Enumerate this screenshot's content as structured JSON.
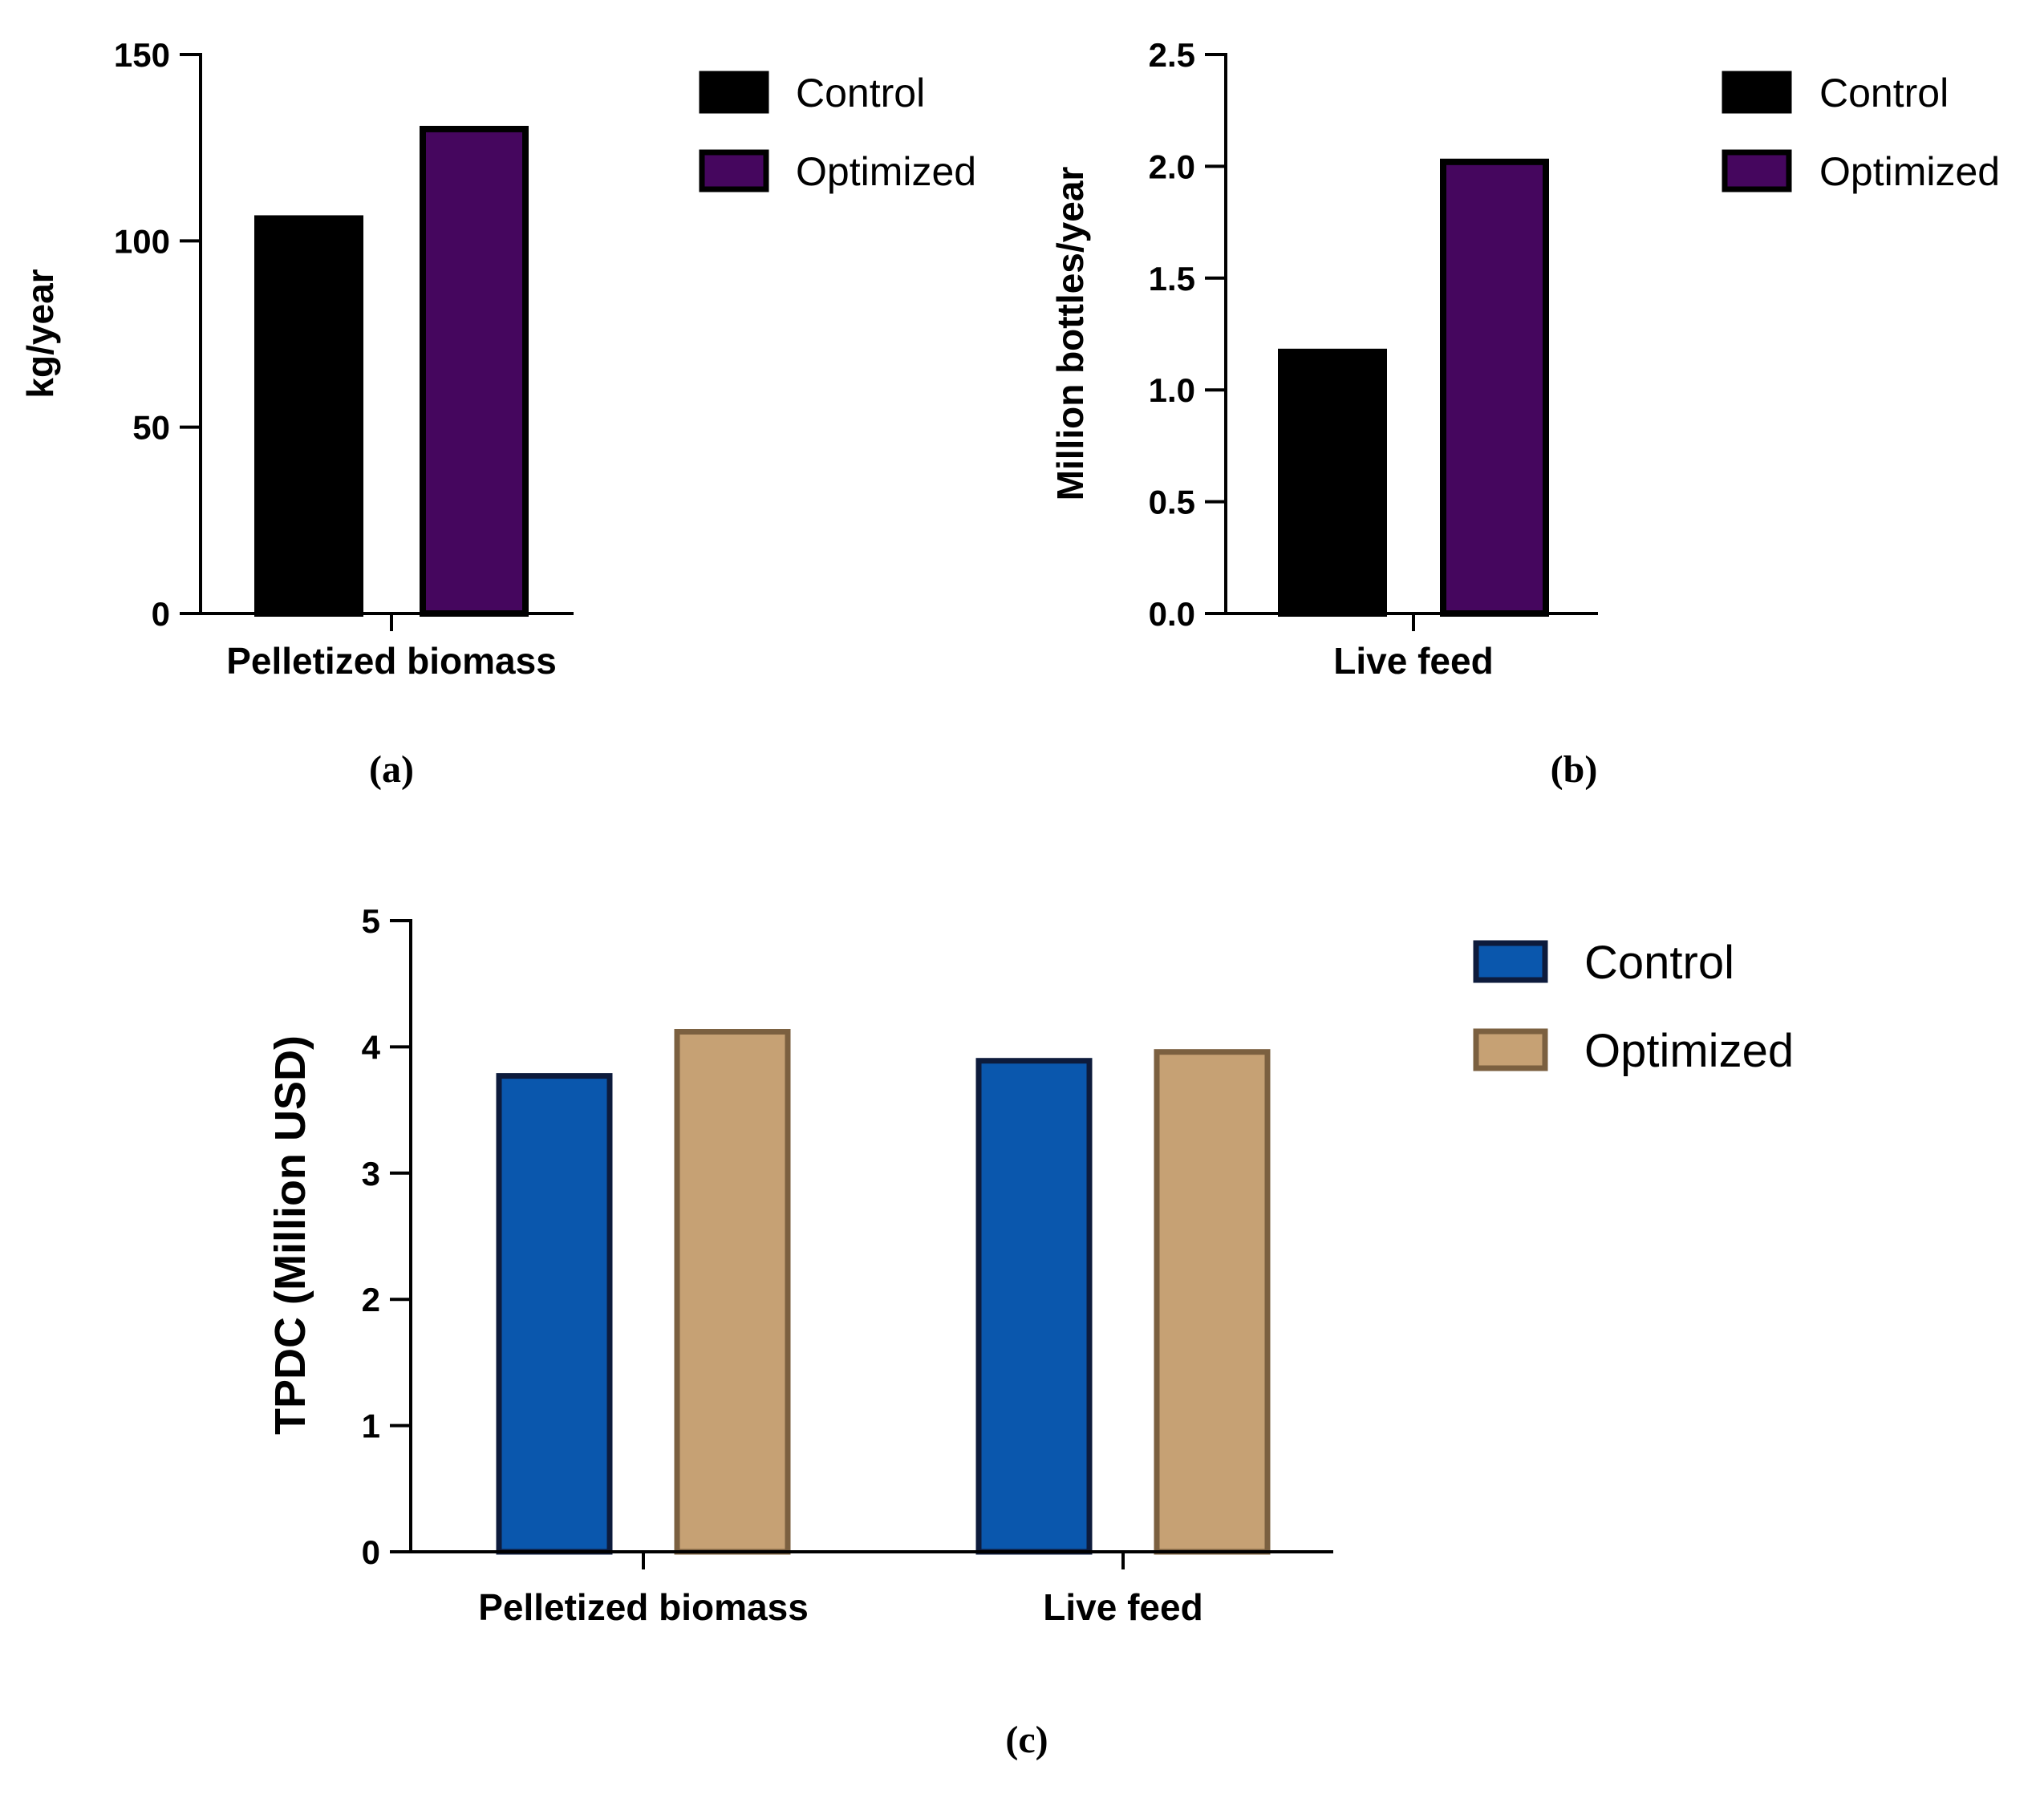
{
  "chart_data": [
    {
      "panel_label": "(a)",
      "type": "bar",
      "categories": [
        "Pelletized biomass"
      ],
      "series": [
        {
          "name": "Control",
          "values": [
            106
          ],
          "color": "#000000",
          "border": "#000000"
        },
        {
          "name": "Optimized",
          "values": [
            130
          ],
          "color": "#45065e",
          "border": "#000000"
        }
      ],
      "ylabel": "kg/year",
      "xlabel": "",
      "ylim": [
        0,
        150
      ],
      "yticks": [
        "0",
        "50",
        "100",
        "150"
      ],
      "legend": "top-right",
      "grid": false
    },
    {
      "panel_label": "(b)",
      "type": "bar",
      "categories": [
        "Live feed"
      ],
      "series": [
        {
          "name": "Control",
          "values": [
            1.17
          ],
          "color": "#000000",
          "border": "#000000"
        },
        {
          "name": "Optimized",
          "values": [
            2.02
          ],
          "color": "#45065e",
          "border": "#000000"
        }
      ],
      "ylabel": "Million bottles/year",
      "xlabel": "",
      "ylim": [
        0,
        2.5
      ],
      "yticks": [
        "0.0",
        "0.5",
        "1.0",
        "1.5",
        "2.0",
        "2.5"
      ],
      "legend": "top-right",
      "grid": false
    },
    {
      "panel_label": "(c)",
      "type": "bar",
      "categories": [
        "Pelletized biomass",
        "Live feed"
      ],
      "series": [
        {
          "name": "Control",
          "values": [
            3.77,
            3.89
          ],
          "color": "#0a57ad",
          "border": "#0d1b3c"
        },
        {
          "name": "Optimized",
          "values": [
            4.12,
            3.96
          ],
          "color": "#c6a174",
          "border": "#7b6040"
        }
      ],
      "ylabel": "TPDC (Million USD)",
      "xlabel": "",
      "ylim": [
        0,
        5
      ],
      "yticks": [
        "0",
        "1",
        "2",
        "3",
        "4",
        "5"
      ],
      "legend": "top-right",
      "grid": false
    }
  ]
}
